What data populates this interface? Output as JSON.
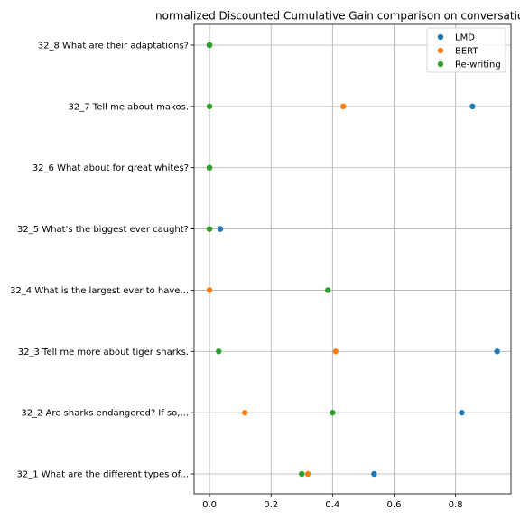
{
  "chart_data": {
    "type": "scatter",
    "title": "normalized Discounted Cumulative Gain comparison on conversatio",
    "xlabel": "",
    "ylabel": "",
    "xlim": [
      -0.05,
      0.98
    ],
    "x_ticks": [
      "0.0",
      "0.2",
      "0.4",
      "0.6",
      "0.8"
    ],
    "x_tick_values": [
      0.0,
      0.2,
      0.4,
      0.6,
      0.8
    ],
    "categories": [
      "32_1 What are the different types of...",
      "32_2 Are sharks endangered? If so,...",
      "32_3 Tell me more about tiger sharks.",
      "32_4 What is the largest ever to have...",
      "32_5 What's the biggest ever caught?",
      "32_6 What about for great whites?",
      "32_7 Tell me about makos.",
      "32_8 What are their adaptations?"
    ],
    "series": [
      {
        "name": "LMD",
        "color": "#1f77b4",
        "values": [
          0.535,
          0.82,
          0.935,
          0.0,
          0.035,
          0.0,
          0.855,
          0.0
        ]
      },
      {
        "name": "BERT",
        "color": "#ff7f0e",
        "values": [
          0.32,
          0.115,
          0.41,
          0.0,
          0.0,
          0.0,
          0.435,
          0.0
        ]
      },
      {
        "name": "Re-writing",
        "color": "#2ca02c",
        "values": [
          0.3,
          0.4,
          0.03,
          0.385,
          0.0,
          0.0,
          0.0,
          0.0
        ]
      }
    ],
    "grid": true,
    "legend_position": "top-right"
  }
}
